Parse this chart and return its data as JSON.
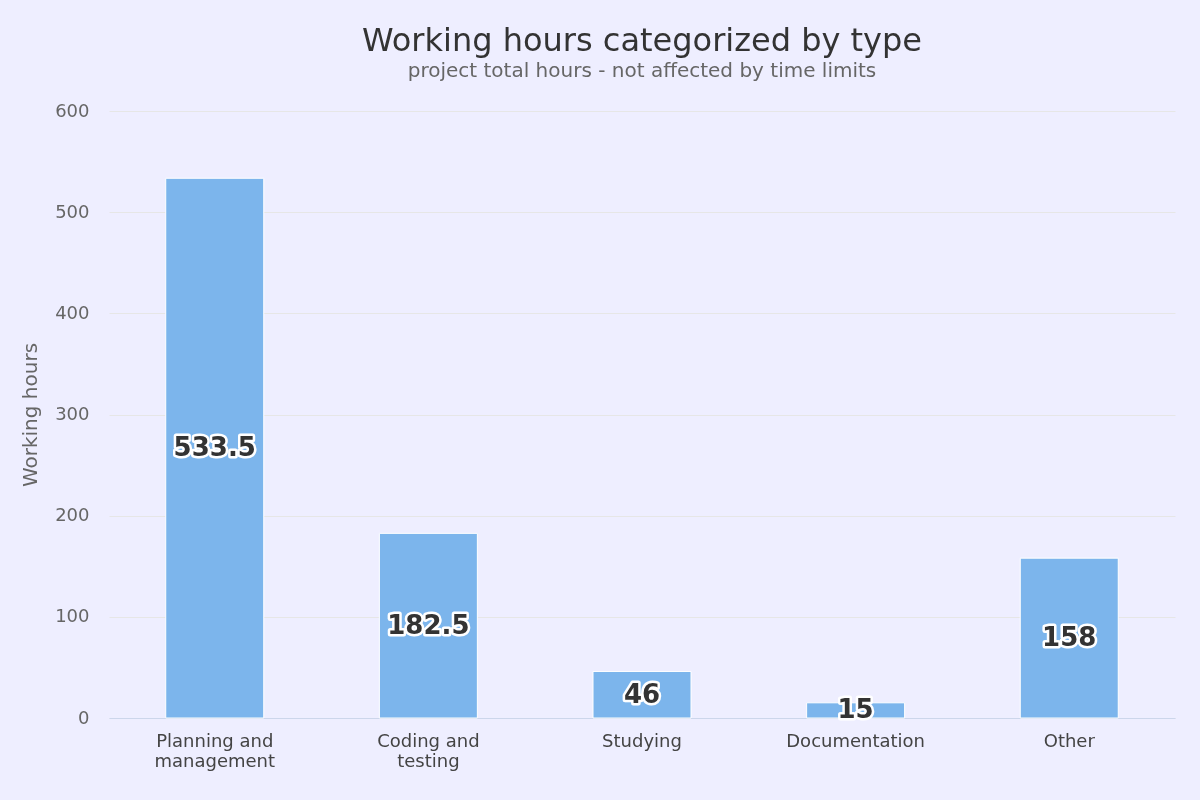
{
  "chart_data": {
    "type": "bar",
    "title": "Working hours categorized by type",
    "subtitle": "project total hours - not affected by time limits",
    "ylabel": "Working hours",
    "categories": [
      "Planning and management",
      "Coding and testing",
      "Studying",
      "Documentation",
      "Other"
    ],
    "values": [
      533.5,
      182.5,
      46,
      15,
      158
    ],
    "color": "#7cb5ec",
    "ylim": [
      0,
      600
    ],
    "yticks": [
      0,
      100,
      200,
      300,
      400,
      500,
      600
    ],
    "grid": "y",
    "data_labels": true
  }
}
